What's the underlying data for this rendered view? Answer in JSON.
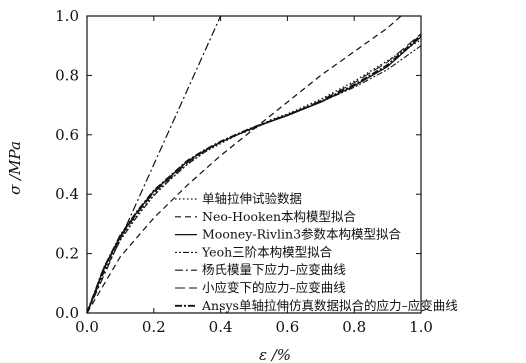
{
  "chart_data": {
    "type": "line",
    "title": "",
    "xlabel": "ε /%",
    "ylabel": "σ /MPa",
    "xlim": [
      0,
      1.0
    ],
    "ylim": [
      0,
      1.0
    ],
    "xticks": [
      "0.0",
      "0.2",
      "0.4",
      "0.6",
      "0.8",
      "1.0"
    ],
    "yticks": [
      "0.0",
      "0.2",
      "0.4",
      "0.6",
      "0.8",
      "1.0"
    ],
    "grid": false,
    "legend_position": "bottom-right",
    "series": [
      {
        "name": "单轴拉伸试验数据",
        "style": "dotted",
        "x": [
          0,
          0.05,
          0.1,
          0.15,
          0.2,
          0.25,
          0.3,
          0.35,
          0.4,
          0.45,
          0.5,
          0.55,
          0.6,
          0.7,
          0.8,
          0.9,
          1.0
        ],
        "y": [
          0,
          0.14,
          0.25,
          0.33,
          0.4,
          0.45,
          0.5,
          0.54,
          0.57,
          0.6,
          0.62,
          0.65,
          0.67,
          0.72,
          0.78,
          0.85,
          0.92
        ]
      },
      {
        "name": "Neo-Hooken本构模型拟合",
        "style": "dashed",
        "x": [
          0,
          0.1,
          0.2,
          0.3,
          0.4,
          0.5,
          0.6,
          0.7,
          0.8,
          0.9,
          0.94
        ],
        "y": [
          0,
          0.19,
          0.32,
          0.43,
          0.53,
          0.62,
          0.71,
          0.8,
          0.88,
          0.96,
          1.0
        ]
      },
      {
        "name": "Mooney-Rivlin3参数本构模型拟合",
        "style": "solid",
        "x": [
          0,
          0.05,
          0.1,
          0.15,
          0.2,
          0.25,
          0.3,
          0.35,
          0.4,
          0.45,
          0.5,
          0.55,
          0.6,
          0.7,
          0.8,
          0.9,
          1.0
        ],
        "y": [
          0,
          0.15,
          0.26,
          0.34,
          0.41,
          0.46,
          0.51,
          0.545,
          0.575,
          0.6,
          0.625,
          0.645,
          0.665,
          0.71,
          0.765,
          0.83,
          0.93
        ]
      },
      {
        "name": "Yeoh三阶本构模型拟合",
        "style": "dash-dot-dot",
        "x": [
          0,
          0.05,
          0.1,
          0.15,
          0.2,
          0.25,
          0.3,
          0.35,
          0.4,
          0.45,
          0.5,
          0.55,
          0.6,
          0.7,
          0.8,
          0.9,
          1.0
        ],
        "y": [
          0,
          0.135,
          0.245,
          0.325,
          0.395,
          0.45,
          0.5,
          0.54,
          0.575,
          0.6,
          0.625,
          0.648,
          0.668,
          0.71,
          0.76,
          0.82,
          0.9
        ]
      },
      {
        "name": "杨氏模量下应力–应变曲线",
        "style": "dash-dot",
        "x": [
          0,
          0.1,
          0.2,
          0.3,
          0.4
        ],
        "y": [
          0,
          0.25,
          0.5,
          0.75,
          1.0
        ]
      },
      {
        "name": "小应变下的应力–应变曲线",
        "style": "long-dash",
        "x": [
          0,
          0.05,
          0.1,
          0.15,
          0.2,
          0.25,
          0.3,
          0.35,
          0.4,
          0.45,
          0.5,
          0.55,
          0.6,
          0.7,
          0.8,
          0.9,
          1.0
        ],
        "y": [
          0,
          0.145,
          0.255,
          0.335,
          0.405,
          0.455,
          0.505,
          0.545,
          0.575,
          0.6,
          0.623,
          0.645,
          0.665,
          0.715,
          0.775,
          0.845,
          0.94
        ]
      },
      {
        "name": "Ansys单轴拉伸仿真数据拟合的应力–应变曲线",
        "style": "dash-dot-bold",
        "x": [
          0,
          0.05,
          0.1,
          0.15,
          0.2,
          0.25,
          0.3,
          0.35,
          0.4,
          0.45,
          0.5,
          0.55,
          0.6,
          0.7,
          0.8,
          0.9,
          1.0
        ],
        "y": [
          0,
          0.15,
          0.262,
          0.342,
          0.412,
          0.462,
          0.512,
          0.547,
          0.577,
          0.602,
          0.626,
          0.646,
          0.666,
          0.712,
          0.768,
          0.835,
          0.935
        ]
      }
    ]
  }
}
